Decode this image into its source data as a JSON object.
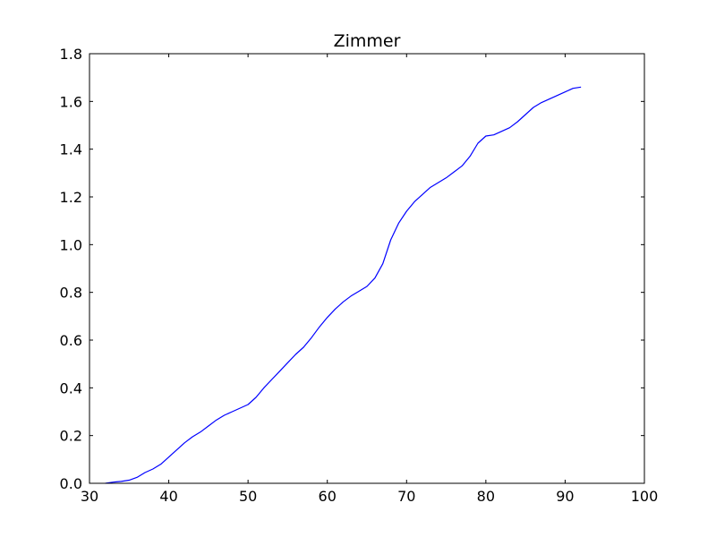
{
  "chart_data": {
    "type": "line",
    "title": "Zimmer",
    "xlabel": "",
    "ylabel": "",
    "xlim": [
      30,
      100
    ],
    "ylim": [
      0.0,
      1.8
    ],
    "x_ticks": [
      30,
      40,
      50,
      60,
      70,
      80,
      90,
      100
    ],
    "x_tick_labels": [
      "30",
      "40",
      "50",
      "60",
      "70",
      "80",
      "90",
      "100"
    ],
    "y_ticks": [
      0.0,
      0.2,
      0.4,
      0.6,
      0.8,
      1.0,
      1.2,
      1.4,
      1.6,
      1.8
    ],
    "y_tick_labels": [
      "0.0",
      "0.2",
      "0.4",
      "0.6",
      "0.8",
      "1.0",
      "1.2",
      "1.4",
      "1.6",
      "1.8"
    ],
    "grid": false,
    "legend": "none",
    "series": [
      {
        "color": "#0000ff",
        "x": [
          32,
          33,
          34,
          35,
          36,
          37,
          38,
          39,
          40,
          41,
          42,
          43,
          44,
          45,
          46,
          47,
          48,
          49,
          50,
          51,
          52,
          53,
          54,
          55,
          56,
          57,
          58,
          59,
          60,
          61,
          62,
          63,
          64,
          65,
          66,
          67,
          68,
          69,
          70,
          71,
          72,
          73,
          74,
          75,
          76,
          77,
          78,
          79,
          80,
          81,
          82,
          83,
          84,
          85,
          86,
          87,
          88,
          89,
          90,
          91,
          92
        ],
        "y": [
          0.0,
          0.005,
          0.008,
          0.013,
          0.025,
          0.045,
          0.06,
          0.08,
          0.11,
          0.14,
          0.17,
          0.195,
          0.215,
          0.24,
          0.265,
          0.285,
          0.3,
          0.315,
          0.33,
          0.36,
          0.4,
          0.435,
          0.47,
          0.505,
          0.54,
          0.57,
          0.61,
          0.655,
          0.695,
          0.73,
          0.76,
          0.785,
          0.805,
          0.825,
          0.86,
          0.92,
          1.02,
          1.09,
          1.14,
          1.18,
          1.21,
          1.24,
          1.26,
          1.28,
          1.305,
          1.33,
          1.37,
          1.425,
          1.455,
          1.46,
          1.475,
          1.49,
          1.515,
          1.545,
          1.575,
          1.595,
          1.61,
          1.625,
          1.64,
          1.655,
          1.66
        ]
      }
    ]
  }
}
